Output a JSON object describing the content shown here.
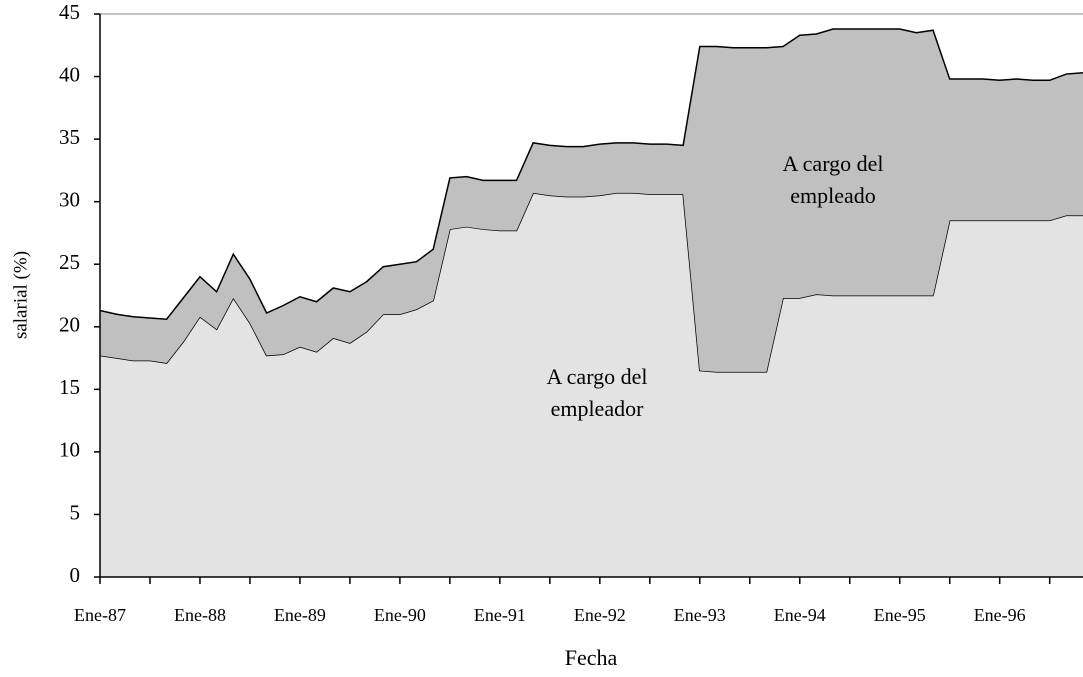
{
  "chart_data": {
    "type": "stacked-area",
    "x_label": "Fecha",
    "y_label": "salarial (%)",
    "categories": [
      "Ene-87",
      null,
      null,
      null,
      null,
      null,
      "Ene-88",
      null,
      null,
      null,
      null,
      null,
      "Ene-89",
      null,
      null,
      null,
      null,
      null,
      "Ene-90",
      null,
      null,
      null,
      null,
      null,
      "Ene-91",
      null,
      null,
      null,
      null,
      null,
      "Ene-92",
      null,
      null,
      null,
      null,
      null,
      "Ene-93",
      null,
      null,
      null,
      null,
      null,
      "Ene-94",
      null,
      null,
      null,
      null,
      null,
      "Ene-95",
      null,
      null,
      null,
      null,
      null,
      "Ene-96",
      null,
      null,
      null,
      null,
      null
    ],
    "series": [
      {
        "name": "A cargo del empleador",
        "color": "#e3e3e3",
        "values": [
          17.7,
          17.5,
          17.3,
          17.3,
          17.1,
          18.8,
          20.8,
          19.8,
          22.3,
          20.3,
          17.7,
          17.8,
          18.4,
          18.0,
          19.1,
          18.7,
          19.6,
          21.0,
          21.0,
          21.4,
          22.1,
          27.8,
          28.0,
          27.8,
          27.7,
          27.7,
          30.7,
          30.5,
          30.4,
          30.4,
          30.5,
          30.7,
          30.7,
          30.6,
          30.6,
          30.6,
          16.5,
          16.4,
          16.4,
          16.4,
          16.4,
          22.3,
          22.3,
          22.6,
          22.5,
          22.5,
          22.5,
          22.5,
          22.5,
          22.5,
          22.5,
          28.5,
          28.5,
          28.5,
          28.5,
          28.5,
          28.5,
          28.5,
          28.9,
          28.9
        ]
      },
      {
        "name": "A cargo del empleado",
        "color": "#c0c0c0",
        "values": [
          3.6,
          3.5,
          3.5,
          3.4,
          3.5,
          3.5,
          3.2,
          3.0,
          3.5,
          3.5,
          3.4,
          3.9,
          4.0,
          4.0,
          4.0,
          4.1,
          4.0,
          3.8,
          4.0,
          3.8,
          4.1,
          4.1,
          4.0,
          3.9,
          4.0,
          4.0,
          4.0,
          4.0,
          4.0,
          4.0,
          4.1,
          4.0,
          4.0,
          4.0,
          4.0,
          3.9,
          25.9,
          26.0,
          25.9,
          25.9,
          25.9,
          20.1,
          21.0,
          20.8,
          21.3,
          21.3,
          21.3,
          21.3,
          21.3,
          21.0,
          21.2,
          11.3,
          11.3,
          11.3,
          11.2,
          11.3,
          11.2,
          11.2,
          11.3,
          11.4
        ]
      }
    ],
    "ylim": [
      0,
      45
    ],
    "yticks": [
      0,
      5,
      10,
      15,
      20,
      25,
      30,
      35,
      40,
      45
    ]
  }
}
